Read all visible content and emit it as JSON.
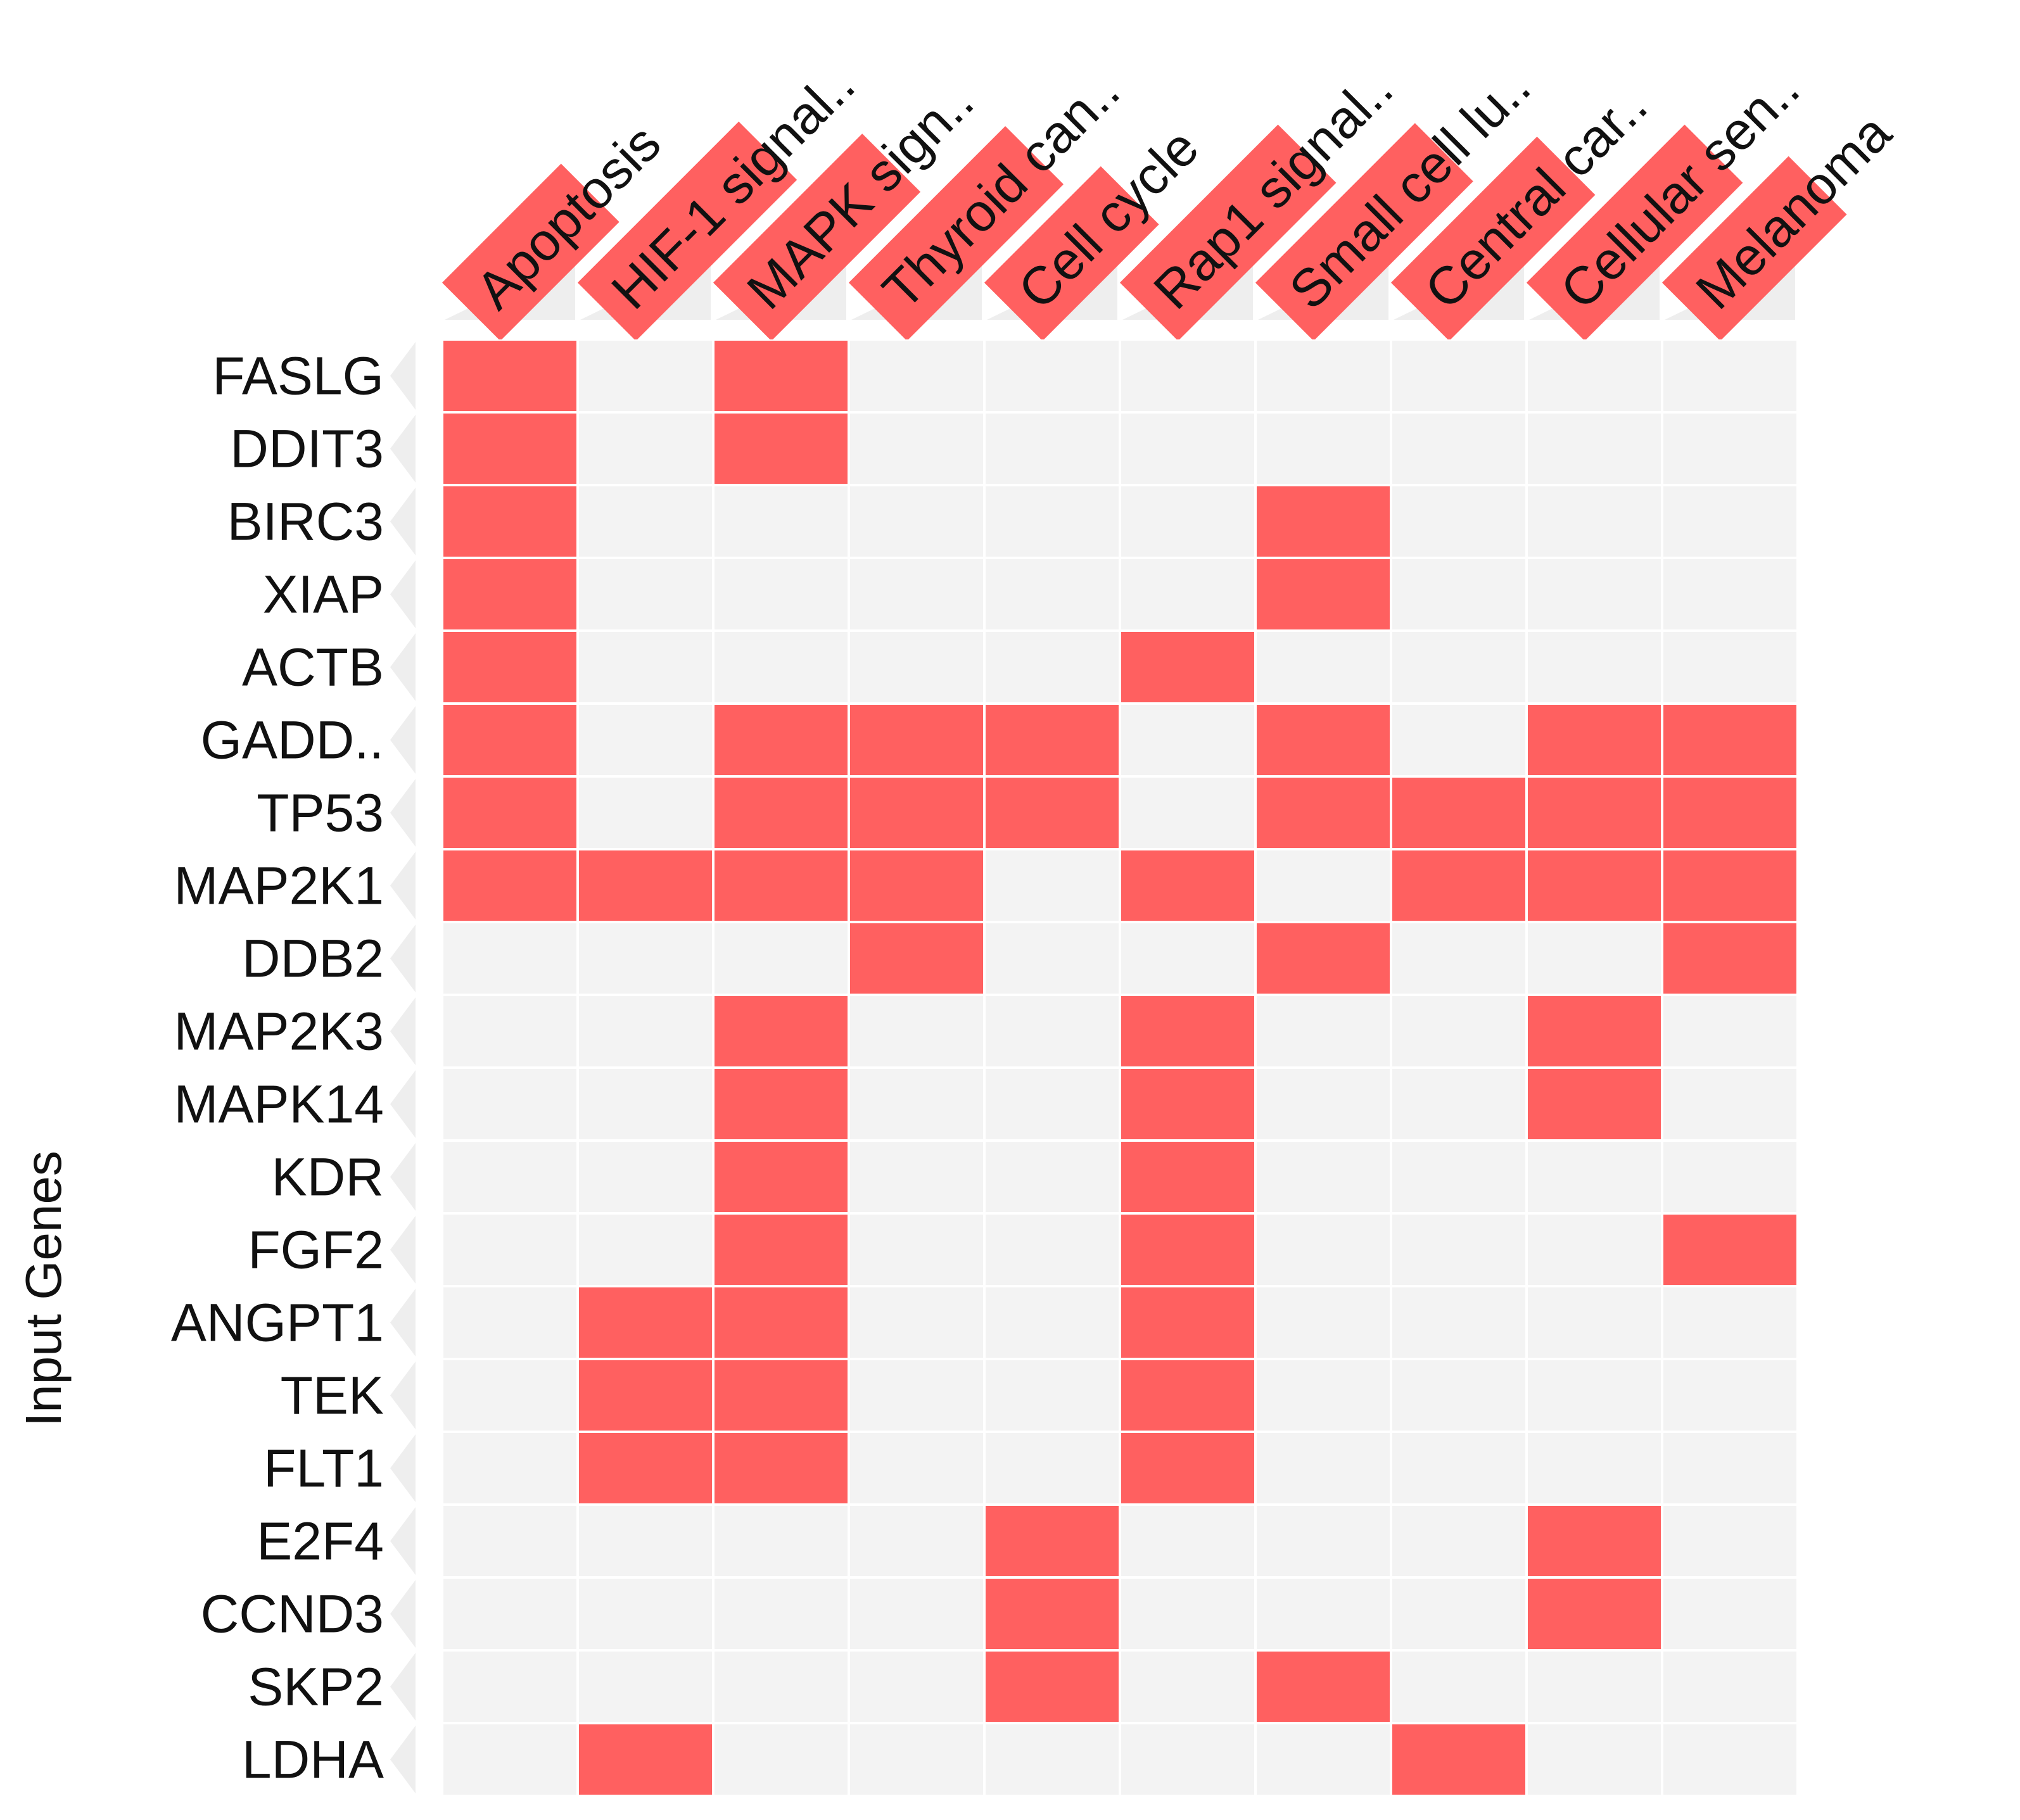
{
  "chart_data": {
    "type": "heatmap",
    "ylabel": "Input Genes",
    "columns": [
      "Apoptosis",
      "HIF-1 signal..",
      "MAPK sign..",
      "Thyroid can..",
      "Cell cycle",
      "Rap1 signal..",
      "Small cell lu..",
      "Central car..",
      "Cellular sen..",
      "Melanoma"
    ],
    "rows": [
      "FASLG",
      "DDIT3",
      "BIRC3",
      "XIAP",
      "ACTB",
      "GADD..",
      "TP53",
      "MAP2K1",
      "DDB2",
      "MAP2K3",
      "MAPK14",
      "KDR",
      "FGF2",
      "ANGPT1",
      "TEK",
      "FLT1",
      "E2F4",
      "CCND3",
      "SKP2",
      "LDHA"
    ],
    "matrix": [
      [
        1,
        0,
        1,
        0,
        0,
        0,
        0,
        0,
        0,
        0
      ],
      [
        1,
        0,
        1,
        0,
        0,
        0,
        0,
        0,
        0,
        0
      ],
      [
        1,
        0,
        0,
        0,
        0,
        0,
        1,
        0,
        0,
        0
      ],
      [
        1,
        0,
        0,
        0,
        0,
        0,
        1,
        0,
        0,
        0
      ],
      [
        1,
        0,
        0,
        0,
        0,
        1,
        0,
        0,
        0,
        0
      ],
      [
        1,
        0,
        1,
        1,
        1,
        0,
        1,
        0,
        1,
        1
      ],
      [
        1,
        0,
        1,
        1,
        1,
        0,
        1,
        1,
        1,
        1
      ],
      [
        1,
        1,
        1,
        1,
        0,
        1,
        0,
        1,
        1,
        1
      ],
      [
        0,
        0,
        0,
        1,
        0,
        0,
        1,
        0,
        0,
        1
      ],
      [
        0,
        0,
        1,
        0,
        0,
        1,
        0,
        0,
        1,
        0
      ],
      [
        0,
        0,
        1,
        0,
        0,
        1,
        0,
        0,
        1,
        0
      ],
      [
        0,
        0,
        1,
        0,
        0,
        1,
        0,
        0,
        0,
        0
      ],
      [
        0,
        0,
        1,
        0,
        0,
        1,
        0,
        0,
        0,
        1
      ],
      [
        0,
        1,
        1,
        0,
        0,
        1,
        0,
        0,
        0,
        0
      ],
      [
        0,
        1,
        1,
        0,
        0,
        1,
        0,
        0,
        0,
        0
      ],
      [
        0,
        1,
        1,
        0,
        0,
        1,
        0,
        0,
        0,
        0
      ],
      [
        0,
        0,
        0,
        0,
        1,
        0,
        0,
        0,
        1,
        0
      ],
      [
        0,
        0,
        0,
        0,
        1,
        0,
        0,
        0,
        1,
        0
      ],
      [
        0,
        0,
        0,
        0,
        1,
        0,
        1,
        0,
        0,
        0
      ],
      [
        0,
        1,
        0,
        0,
        0,
        0,
        0,
        1,
        0,
        0
      ]
    ],
    "colors": {
      "on": "#ff6060",
      "off": "#f3f3f3",
      "grid": "#ffffff",
      "label_bg": "#eeeeee"
    },
    "legend": false
  }
}
